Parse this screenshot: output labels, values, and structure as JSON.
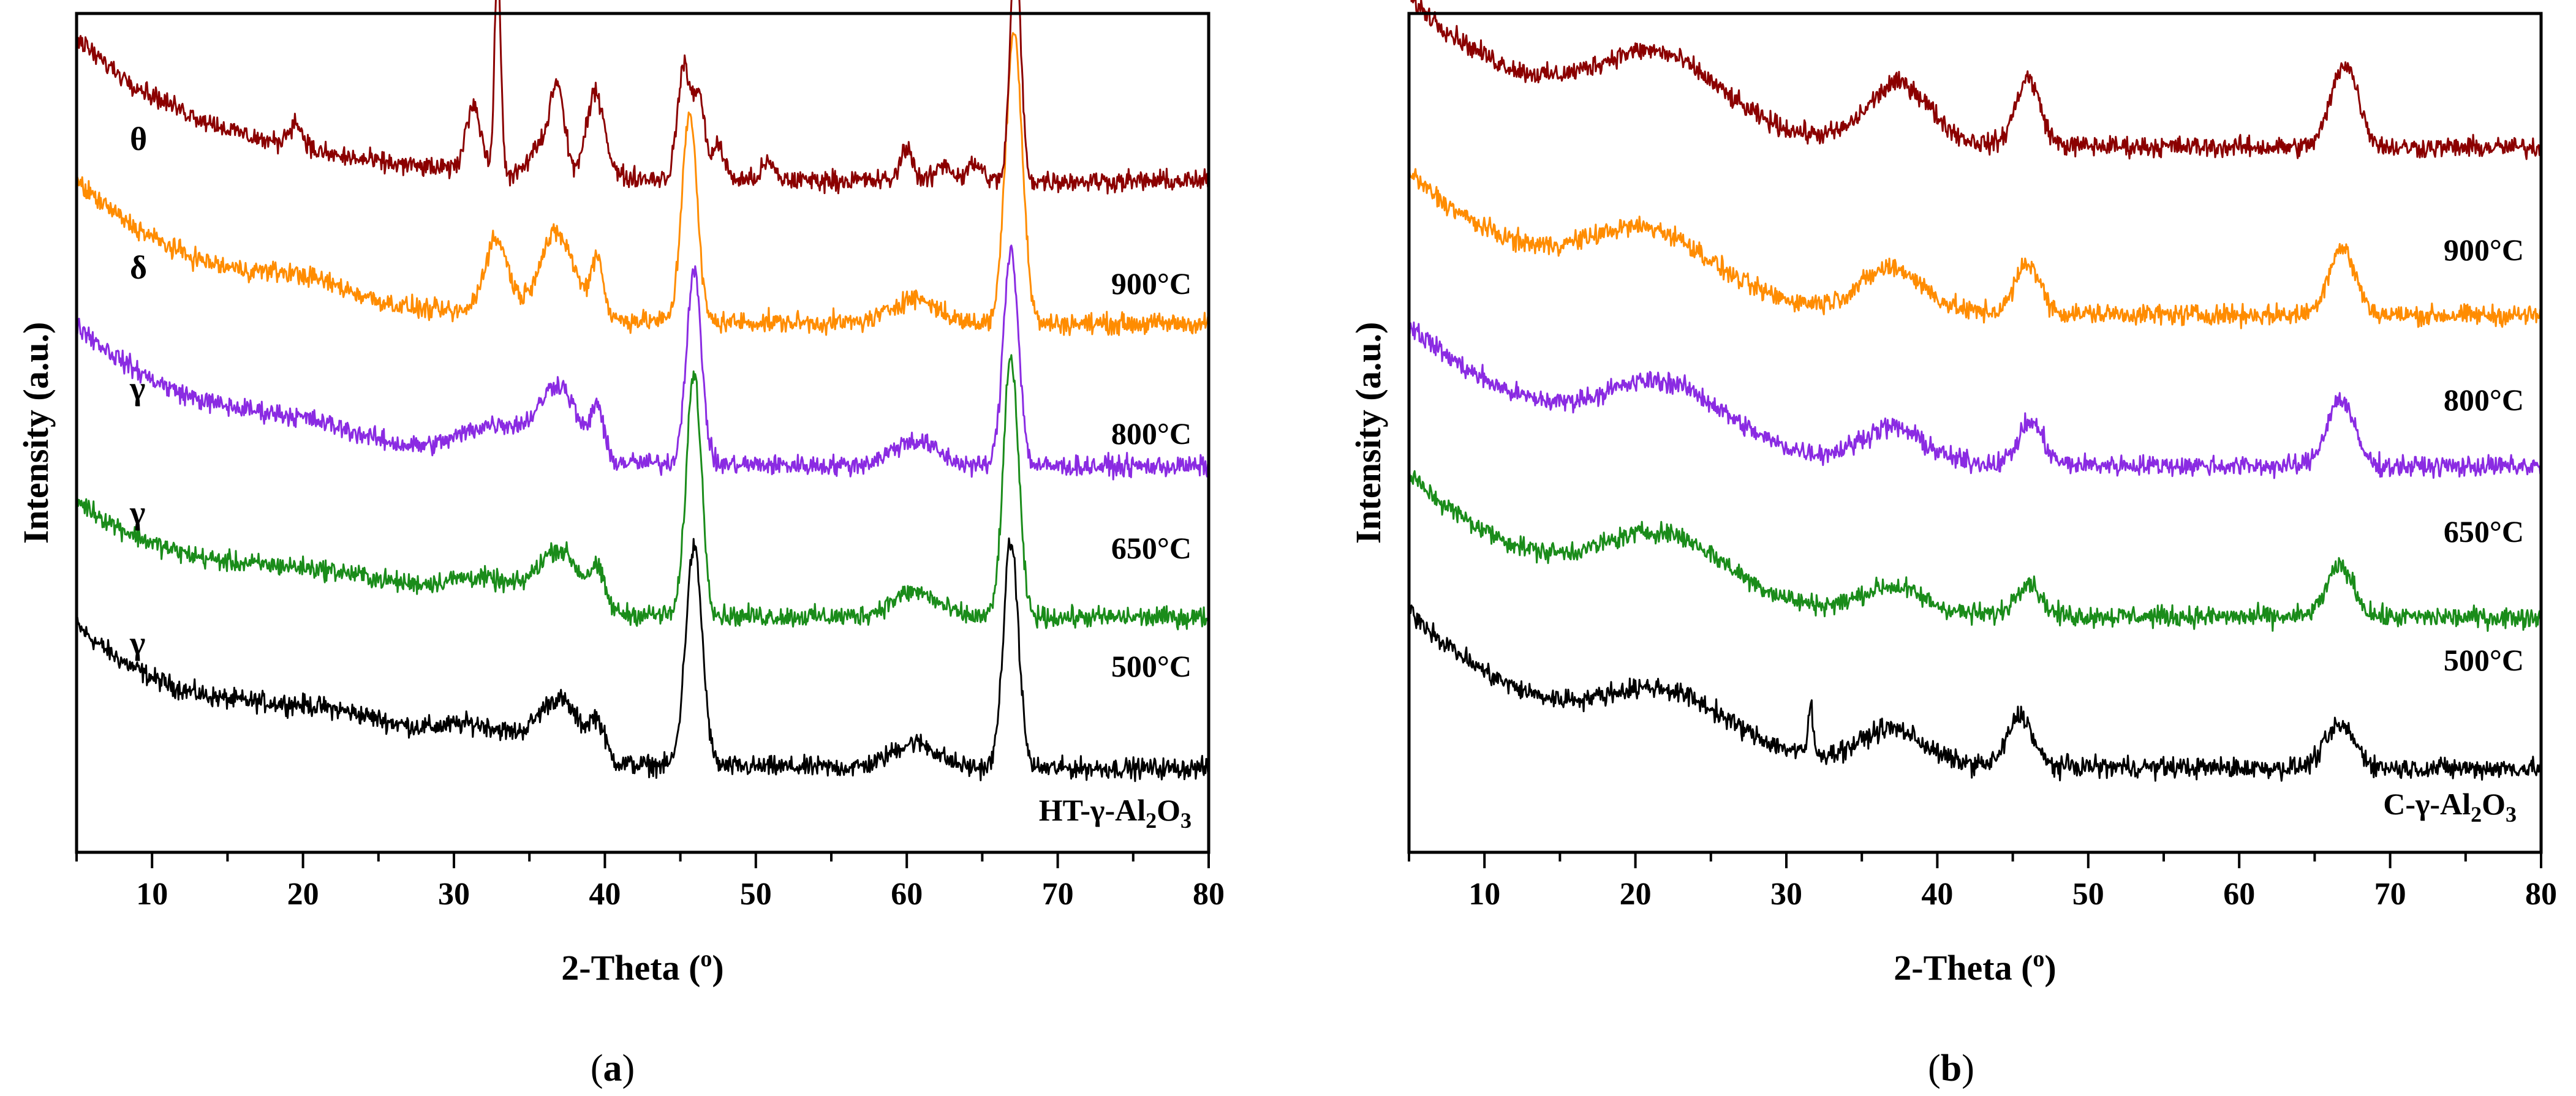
{
  "figure": {
    "panels": [
      {
        "id": "a",
        "caption_open": "(",
        "caption_letter": "a",
        "caption_close": ")",
        "xlabel": "2-Theta (",
        "xlabel_unit": "o",
        "xlabel_close": ")",
        "ylabel": "Intensity (a.u.)",
        "sample": {
          "prefix": "HT-γ-Al",
          "sub1": "2",
          "mid": "O",
          "sub2": "3"
        },
        "temperatures": [
          "900°C",
          "800°C",
          "650°C",
          "500°C"
        ],
        "phases": [
          "θ",
          "δ",
          "γ",
          "γ",
          "γ"
        ]
      },
      {
        "id": "b",
        "caption_open": "(",
        "caption_letter": "b",
        "caption_close": ")",
        "xlabel": "2-Theta (",
        "xlabel_unit": "o",
        "xlabel_close": ")",
        "ylabel": "Intensity (a.u.)",
        "sample": {
          "prefix": "C-γ-Al",
          "sub1": "2",
          "mid": "O",
          "sub2": "3"
        },
        "temperatures": [
          "900°C",
          "800°C",
          "650°C",
          "500°C"
        ],
        "phases": []
      }
    ]
  },
  "chart_data": [
    {
      "type": "line",
      "panel": "a",
      "title": "",
      "xlabel": "2-Theta (o)",
      "ylabel": "Intensity (a.u.)",
      "xlim": [
        5,
        80
      ],
      "ylim": [
        0,
        100
      ],
      "xticks": [
        10,
        20,
        30,
        40,
        50,
        60,
        70,
        80
      ],
      "series": [
        {
          "name": "HT-γ-Al2O3",
          "color": "#000000",
          "baseline": 10,
          "start": 17,
          "bumps": [
            [
              22,
              4,
              6
            ],
            [
              32,
              3,
              2.5
            ],
            [
              37,
              7,
              1.4
            ],
            [
              39.5,
              4,
              0.5
            ],
            [
              45.9,
              26,
              0.55
            ],
            [
              60.5,
              3,
              1.5
            ],
            [
              66.9,
              27,
              0.5
            ]
          ]
        },
        {
          "name": "500°C",
          "color": "#1a8c1a",
          "baseline": 28,
          "start": 14,
          "bumps": [
            [
              22,
              3,
              6
            ],
            [
              32,
              3,
              2.5
            ],
            [
              37,
              7,
              1.4
            ],
            [
              39.5,
              4,
              0.5
            ],
            [
              45.9,
              29,
              0.5
            ],
            [
              60.5,
              3,
              1.5
            ],
            [
              66.9,
              31,
              0.5
            ]
          ]
        },
        {
          "name": "650°C",
          "color": "#8a2be2",
          "baseline": 46,
          "start": 17,
          "bumps": [
            [
              20,
              2,
              4
            ],
            [
              33,
              4,
              2.5
            ],
            [
              37,
              8,
              1.2
            ],
            [
              39.5,
              6,
              0.4
            ],
            [
              45.9,
              23,
              0.5
            ],
            [
              60.5,
              3,
              1.5
            ],
            [
              66.9,
              26,
              0.5
            ]
          ]
        },
        {
          "name": "800°C",
          "color": "#ff8c00",
          "baseline": 63,
          "start": 17,
          "bumps": [
            [
              20,
              2,
              3
            ],
            [
              32.8,
              9,
              0.8
            ],
            [
              36.8,
              10,
              1.2
            ],
            [
              39.5,
              7,
              0.4
            ],
            [
              45.6,
              25,
              0.5
            ],
            [
              60.5,
              3,
              1.5
            ],
            [
              67.1,
              35,
              0.55
            ]
          ]
        },
        {
          "name": "900°C",
          "color": "#8b0000",
          "baseline": 80,
          "start": 17,
          "bumps": [
            [
              19.5,
              3,
              0.5
            ],
            [
              31.3,
              8,
              0.5
            ],
            [
              32.9,
              25,
              0.2
            ],
            [
              35.5,
              3,
              0.5
            ],
            [
              36.8,
              11,
              0.5
            ],
            [
              39.4,
              10,
              0.6
            ],
            [
              45.2,
              13,
              0.4
            ],
            [
              46.2,
              10,
              0.4
            ],
            [
              47.5,
              4,
              0.4
            ],
            [
              50.8,
              2,
              0.4
            ],
            [
              60,
              4,
              0.4
            ],
            [
              62.5,
              2,
              0.5
            ],
            [
              64.5,
              2,
              0.5
            ],
            [
              67.2,
              28,
              0.35
            ]
          ]
        }
      ]
    },
    {
      "type": "line",
      "panel": "b",
      "title": "",
      "xlabel": "2-Theta (o)",
      "ylabel": "Intensity (a.u.)",
      "xlim": [
        5,
        80
      ],
      "ylim": [
        0,
        100
      ],
      "xticks": [
        10,
        20,
        30,
        40,
        50,
        60,
        70,
        80
      ],
      "series": [
        {
          "name": "C-γ-Al2O3",
          "color": "#000000",
          "baseline": 10,
          "start": 19,
          "bumps": [
            [
              22,
              6,
              4
            ],
            [
              31.6,
              6,
              0.15
            ],
            [
              37,
              4,
              2
            ],
            [
              45.5,
              6,
              0.8
            ],
            [
              66.7,
              5,
              1
            ]
          ]
        },
        {
          "name": "500°C",
          "color": "#1a8c1a",
          "baseline": 28,
          "start": 17,
          "bumps": [
            [
              22,
              7,
              4
            ],
            [
              37,
              3,
              2
            ],
            [
              46,
              4,
              0.8
            ],
            [
              66.7,
              6,
              0.9
            ]
          ]
        },
        {
          "name": "650°C",
          "color": "#8a2be2",
          "baseline": 46,
          "start": 17,
          "bumps": [
            [
              22,
              7,
              4
            ],
            [
              37,
              4,
              2
            ],
            [
              46.2,
              5,
              0.8
            ],
            [
              66.7,
              8,
              0.9
            ]
          ]
        },
        {
          "name": "800°C",
          "color": "#ff8c00",
          "baseline": 64,
          "start": 17,
          "bumps": [
            [
              21,
              7,
              4
            ],
            [
              37,
              5,
              2
            ],
            [
              46,
              6,
              0.8
            ],
            [
              66.8,
              8,
              0.9
            ]
          ]
        },
        {
          "name": "900°C",
          "color": "#8b0000",
          "baseline": 84,
          "start": 18,
          "bumps": [
            [
              21.5,
              8,
              4
            ],
            [
              37.5,
              7,
              2
            ],
            [
              46,
              8,
              0.8
            ],
            [
              67,
              10,
              0.9
            ]
          ]
        }
      ]
    }
  ]
}
